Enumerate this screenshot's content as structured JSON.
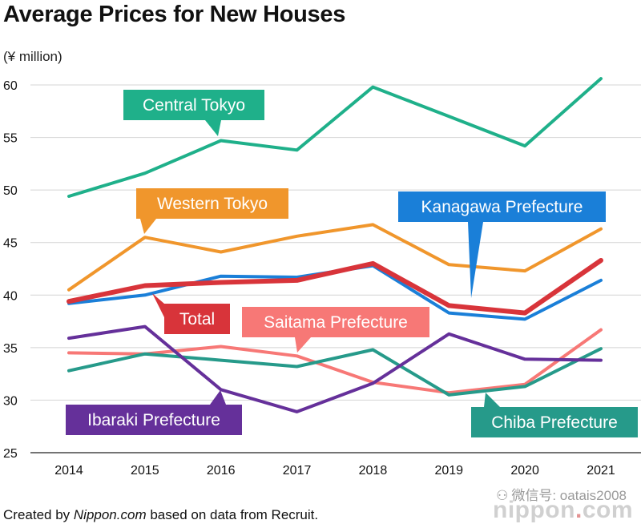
{
  "header": {
    "title": "Average Prices for New Houses",
    "unit": "(¥ million)"
  },
  "footer": {
    "credit_prefix": "Created by ",
    "credit_site": "Nippon.com",
    "credit_suffix": " based on data from Recruit.",
    "watermark": "微信号: oatais2008",
    "brand_main": "nippon",
    "brand_dot": ".",
    "brand_tail": "com"
  },
  "chart_data": {
    "type": "line",
    "title": "Average Prices for New Houses",
    "ylabel": "(¥ million)",
    "xlabel": "",
    "x": [
      "2014",
      "2015",
      "2016",
      "2017",
      "2018",
      "2019",
      "2020",
      "2021"
    ],
    "ylim": [
      25,
      60
    ],
    "yticks": [
      25,
      30,
      35,
      40,
      45,
      50,
      55,
      60
    ],
    "grid": "horizontal",
    "series": [
      {
        "name": "Central Tokyo",
        "color": "#1fb08a",
        "values": [
          49.4,
          51.6,
          54.7,
          53.8,
          59.8,
          57.0,
          54.2,
          60.6
        ]
      },
      {
        "name": "Western Tokyo",
        "color": "#f0962c",
        "values": [
          40.5,
          45.5,
          44.1,
          45.6,
          46.7,
          42.9,
          42.3,
          46.3
        ]
      },
      {
        "name": "Kanagawa Prefecture",
        "color": "#1a7fd8",
        "values": [
          39.2,
          40.0,
          41.8,
          41.7,
          42.8,
          38.3,
          37.7,
          41.4
        ]
      },
      {
        "name": "Total",
        "color": "#d8343a",
        "values": [
          39.4,
          40.9,
          41.2,
          41.4,
          43.0,
          39.0,
          38.3,
          43.3
        ]
      },
      {
        "name": "Saitama Prefecture",
        "color": "#f77876",
        "values": [
          34.5,
          34.4,
          35.1,
          34.2,
          31.7,
          30.7,
          31.5,
          36.7
        ]
      },
      {
        "name": "Chiba Prefecture",
        "color": "#269a8a",
        "values": [
          32.8,
          34.4,
          33.8,
          33.2,
          34.8,
          30.5,
          31.3,
          34.9
        ]
      },
      {
        "name": "Ibaraki Prefecture",
        "color": "#65309a",
        "values": [
          35.9,
          37.0,
          31.0,
          28.9,
          31.6,
          36.3,
          33.9,
          33.8
        ]
      }
    ]
  }
}
